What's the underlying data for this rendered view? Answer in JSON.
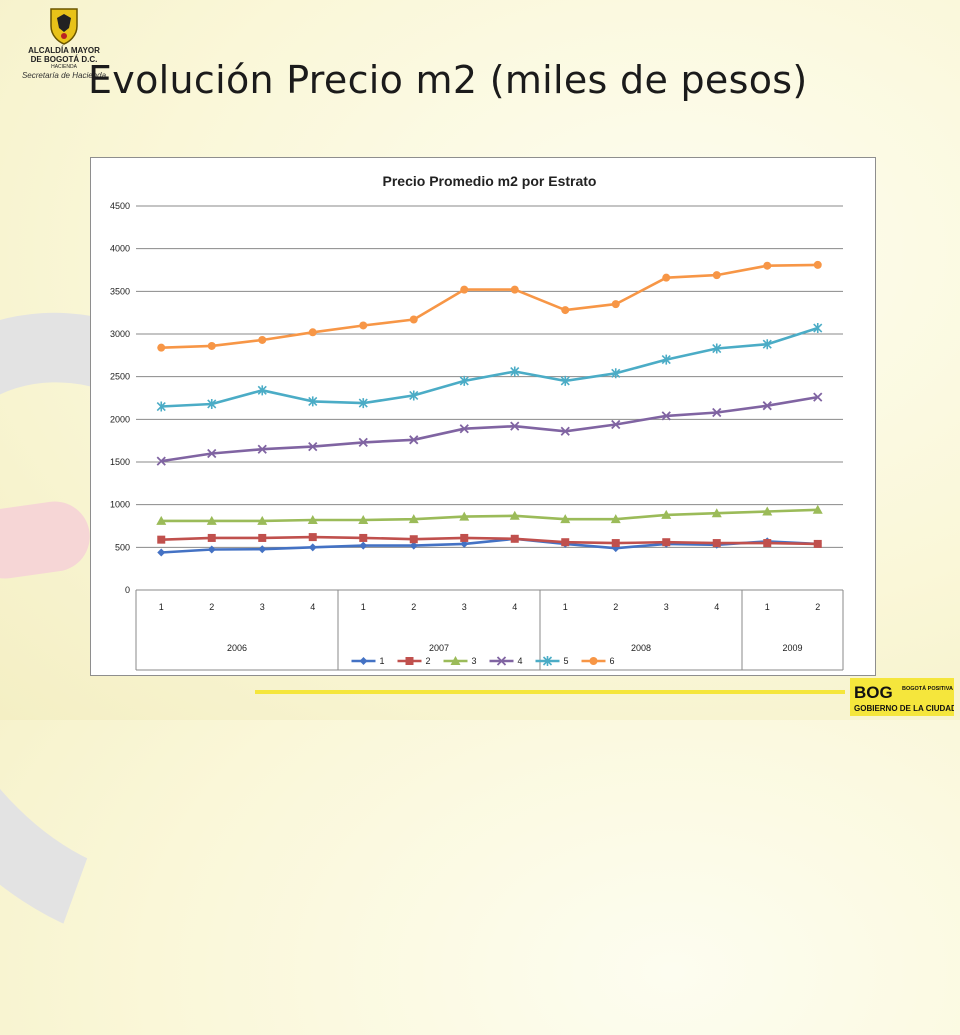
{
  "page": {
    "title": "Evolución Precio m2 (miles de pesos)",
    "seal": {
      "line1": "ALCALDÍA MAYOR",
      "line2": "DE BOGOTÁ D.C.",
      "line3": "HACIENDA",
      "line4": "Secretaría de Hacienda"
    },
    "logo": {
      "mark": "BOG",
      "side": "BOGOTÁ POSITIVA",
      "tag": "GOBIERNO DE LA CIUDAD"
    }
  },
  "colors": {
    "s1": "#4472c4",
    "s2": "#c0504d",
    "s3": "#9bbb59",
    "s4": "#8064a2",
    "s5": "#4bacc6",
    "s6": "#f79646"
  },
  "chart_data": {
    "type": "line",
    "title": "Precio Promedio m2 por Estrato",
    "xlabel": "",
    "ylabel": "",
    "ylim": [
      0,
      4500
    ],
    "yticks": [
      0,
      500,
      1000,
      1500,
      2000,
      2500,
      3000,
      3500,
      4000,
      4500
    ],
    "grid": true,
    "legend": "bottom",
    "categories": [
      "1",
      "2",
      "3",
      "4",
      "1",
      "2",
      "3",
      "4",
      "1",
      "2",
      "3",
      "4",
      "1",
      "2"
    ],
    "groups": [
      {
        "label": "2006",
        "count": 4
      },
      {
        "label": "2007",
        "count": 4
      },
      {
        "label": "2008",
        "count": 4
      },
      {
        "label": "2009",
        "count": 2
      }
    ],
    "series": [
      {
        "name": "1",
        "color": "#4472c4",
        "marker": "diamond",
        "values": [
          440,
          475,
          478,
          500,
          520,
          520,
          540,
          600,
          540,
          490,
          540,
          530,
          570,
          540
        ]
      },
      {
        "name": "2",
        "color": "#c0504d",
        "marker": "square",
        "values": [
          590,
          610,
          610,
          620,
          610,
          595,
          610,
          600,
          560,
          550,
          560,
          550,
          550,
          540
        ]
      },
      {
        "name": "3",
        "color": "#9bbb59",
        "marker": "triangle",
        "values": [
          810,
          810,
          810,
          820,
          820,
          830,
          860,
          870,
          830,
          830,
          880,
          900,
          920,
          940
        ]
      },
      {
        "name": "4",
        "color": "#8064a2",
        "marker": "x",
        "values": [
          1510,
          1600,
          1650,
          1680,
          1730,
          1760,
          1890,
          1920,
          1860,
          1940,
          2040,
          2080,
          2160,
          2260
        ]
      },
      {
        "name": "5",
        "color": "#4bacc6",
        "marker": "star",
        "values": [
          2150,
          2180,
          2340,
          2210,
          2190,
          2280,
          2450,
          2560,
          2450,
          2540,
          2700,
          2830,
          2880,
          3070
        ]
      },
      {
        "name": "6",
        "color": "#f79646",
        "marker": "circle",
        "values": [
          2840,
          2860,
          2930,
          3020,
          3100,
          3170,
          3520,
          3520,
          3280,
          3350,
          3660,
          3690,
          3800,
          3810
        ]
      }
    ]
  }
}
